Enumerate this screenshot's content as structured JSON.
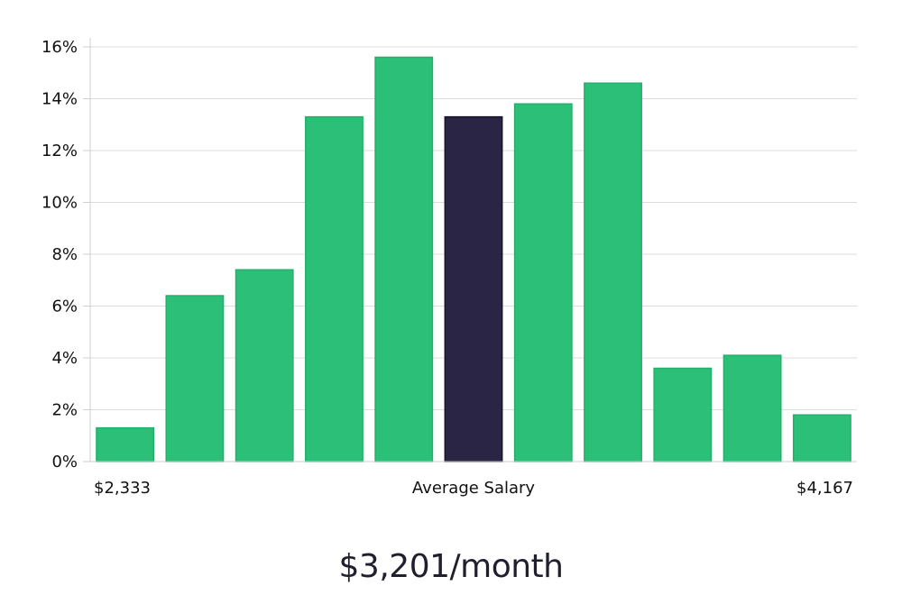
{
  "chart_data": {
    "type": "bar",
    "categories": [
      "1",
      "2",
      "3",
      "4",
      "5",
      "6",
      "7",
      "8",
      "9",
      "10",
      "11"
    ],
    "values": [
      1.3,
      6.4,
      7.4,
      13.3,
      15.6,
      13.3,
      13.8,
      14.6,
      3.6,
      4.1,
      1.8
    ],
    "highlight_index": 5,
    "ylim": [
      0,
      16
    ],
    "yticks": [
      "0%",
      "2%",
      "4%",
      "6%",
      "8%",
      "10%",
      "12%",
      "14%",
      "16%"
    ],
    "xlabel_left": "$2,333",
    "xlabel_center": "Average Salary",
    "xlabel_right": "$4,167",
    "grid": true,
    "colors": {
      "bar": "#2bbf77",
      "highlight": "#2a2545"
    }
  },
  "summary": {
    "value": "$3,201/month"
  }
}
